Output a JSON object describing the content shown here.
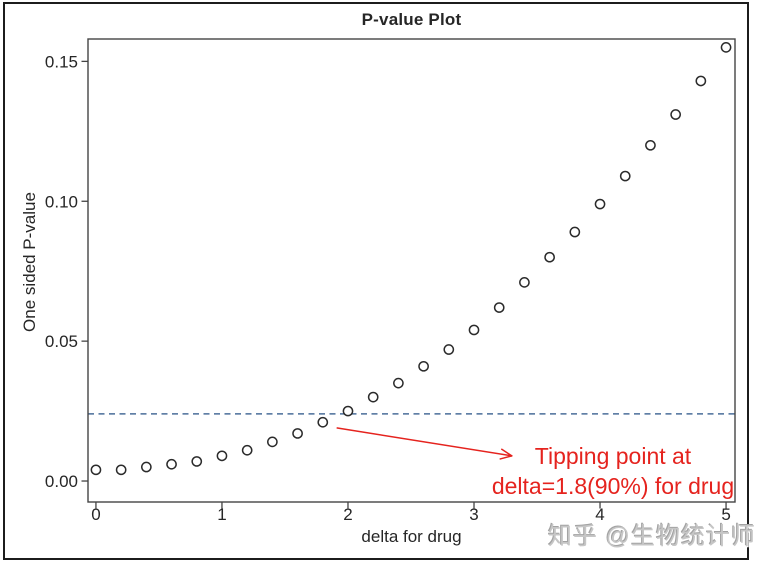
{
  "figure": {
    "watermark": "知乎 @生物统计师"
  },
  "chart_data": {
    "type": "scatter",
    "title": "P-value Plot",
    "xlabel": "delta for drug",
    "ylabel": "One sided P-value",
    "x": [
      0.0,
      0.2,
      0.4,
      0.6,
      0.8,
      1.0,
      1.2,
      1.4,
      1.6,
      1.8,
      2.0,
      2.2,
      2.4,
      2.6,
      2.8,
      3.0,
      3.2,
      3.4,
      3.6,
      3.8,
      4.0,
      4.2,
      4.4,
      4.6,
      4.8,
      5.0
    ],
    "y": [
      0.004,
      0.004,
      0.005,
      0.006,
      0.007,
      0.009,
      0.011,
      0.014,
      0.017,
      0.021,
      0.025,
      0.03,
      0.035,
      0.041,
      0.047,
      0.054,
      0.062,
      0.071,
      0.08,
      0.089,
      0.099,
      0.109,
      0.12,
      0.131,
      0.143,
      0.155
    ],
    "marker": "open-circle",
    "grid": false,
    "xlim": [
      -0.063,
      5.071
    ],
    "ylim": [
      -0.0075,
      0.158
    ],
    "xticks": [
      0,
      1,
      2,
      3,
      4,
      5
    ],
    "xtick_labels": [
      "0",
      "1",
      "2",
      "3",
      "4",
      "5"
    ],
    "yticks": [
      0.0,
      0.05,
      0.1,
      0.15
    ],
    "ytick_labels": [
      "0.00",
      "0.05",
      "0.10",
      "0.15"
    ],
    "reference_line": {
      "value": 0.024,
      "style": "dashed",
      "color": "#4a6d99"
    },
    "annotation": {
      "lines": [
        "Tipping point at",
        "delta=1.8(90%) for drug"
      ],
      "color": "#e5231e",
      "arrow_from_xy": [
        1.91,
        0.019
      ],
      "arrow_to_xy": [
        3.3,
        0.009
      ]
    },
    "colors": {
      "marker_stroke": "#2b2b2b",
      "axis": "#444444",
      "text": "#262626"
    }
  }
}
